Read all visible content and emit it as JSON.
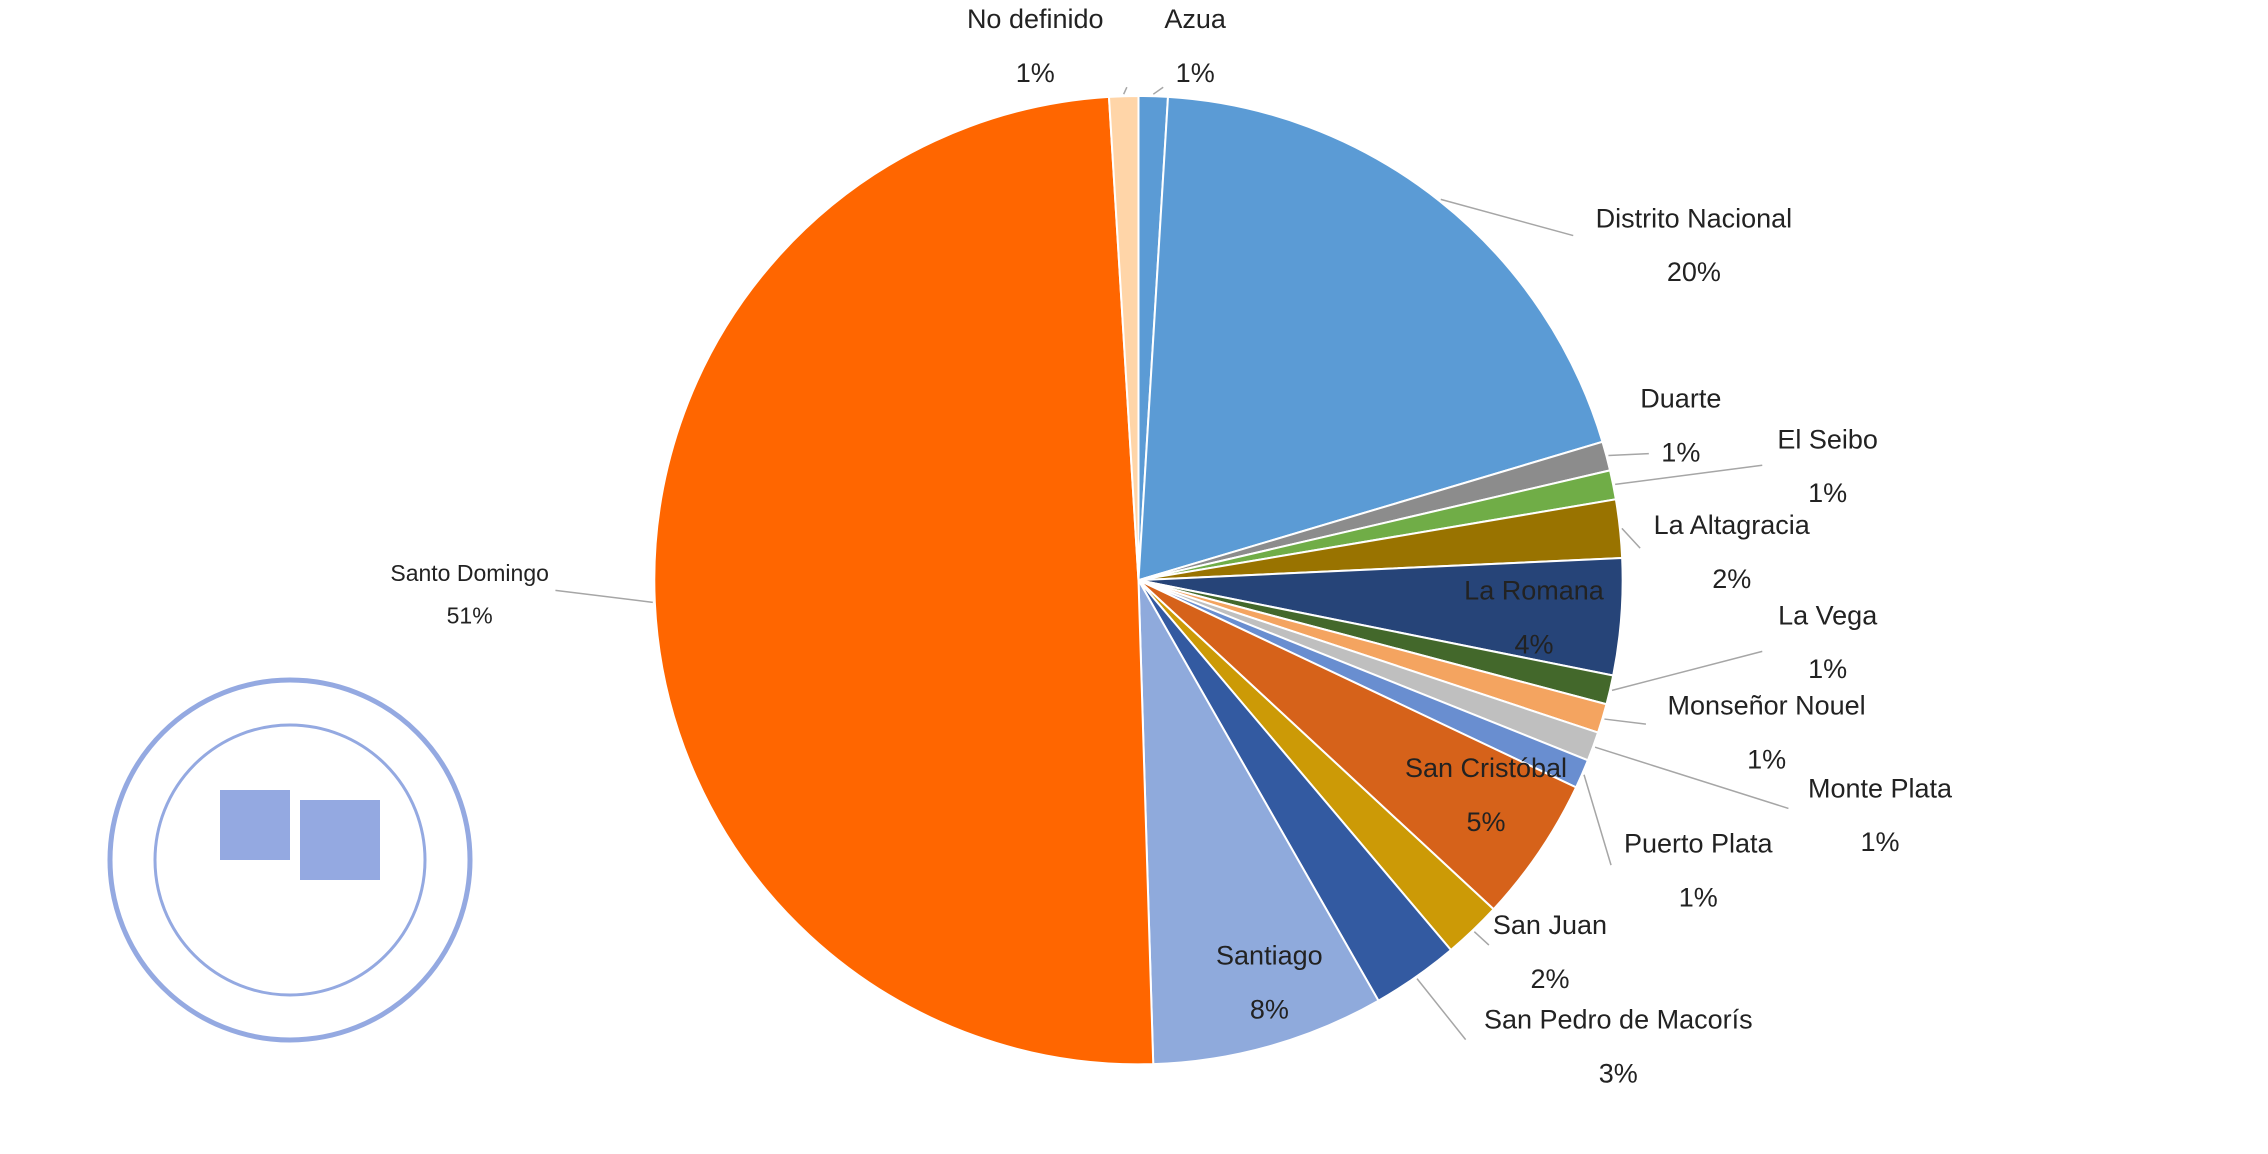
{
  "chart_data": {
    "type": "pie",
    "categories": [
      "Azua",
      "Distrito Nacional",
      "Duarte",
      "El Seibo",
      "La Altagracia",
      "La Romana",
      "La Vega",
      "Monseñor Nouel",
      "Monte Plata",
      "Puerto Plata",
      "San Cristóbal",
      "San Juan",
      "San Pedro de Macorís",
      "Santiago",
      "Santo Domingo",
      "No definido"
    ],
    "values": [
      1,
      20,
      1,
      1,
      2,
      4,
      1,
      1,
      1,
      1,
      5,
      2,
      3,
      8,
      51,
      1
    ],
    "value_labels": [
      "1%",
      "20%",
      "1%",
      "1%",
      "2%",
      "4%",
      "1%",
      "1%",
      "1%",
      "1%",
      "5%",
      "2%",
      "3%",
      "8%",
      "51%",
      "1%"
    ],
    "colors": [
      "#5b9bd5",
      "#5b9bd5",
      "#8c8c8c",
      "#70ad47",
      "#997300",
      "#264478",
      "#43682b",
      "#f4a460",
      "#bfbfbf",
      "#698ed0",
      "#d6621a",
      "#cc9a06",
      "#335aa1",
      "#8faadc",
      "#ff6600",
      "#ffd5a8"
    ]
  }
}
